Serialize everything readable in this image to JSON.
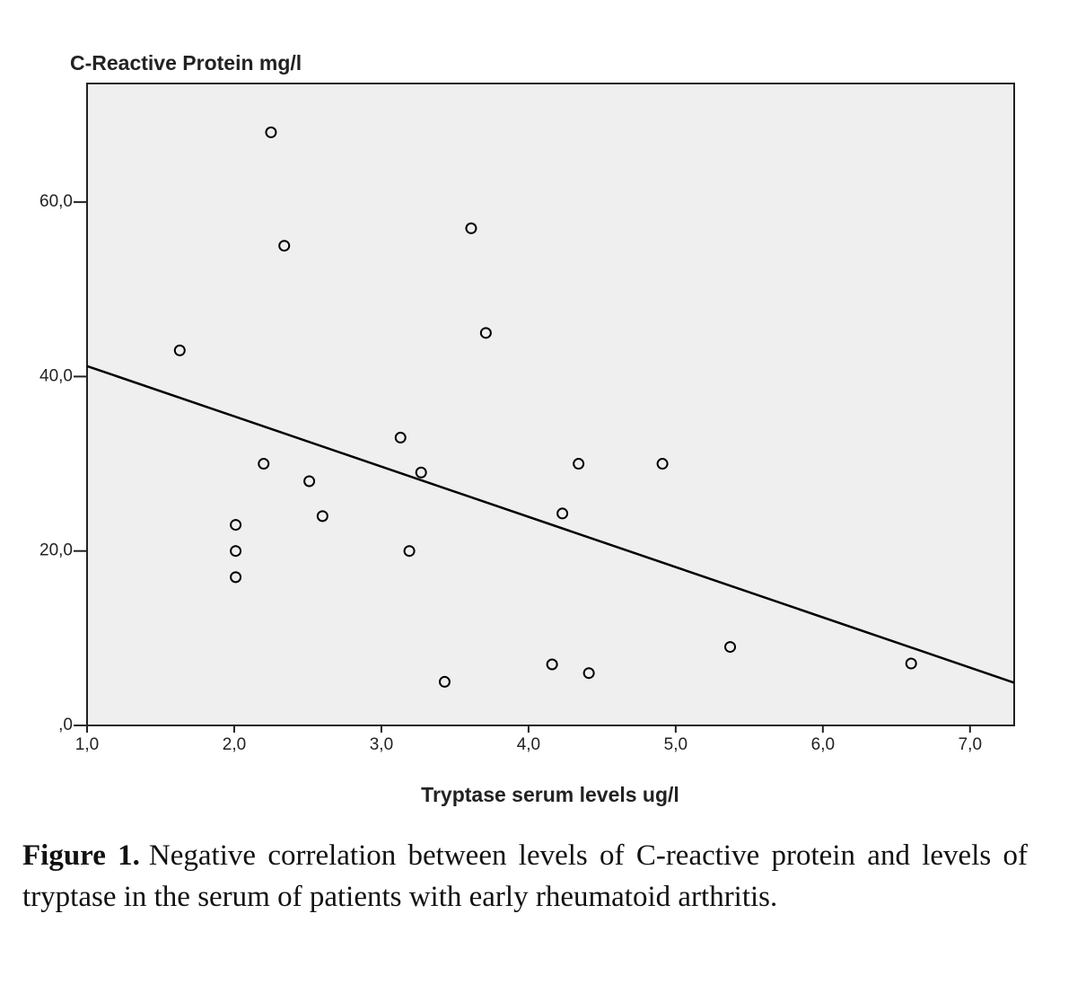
{
  "chart_data": {
    "type": "scatter",
    "y_label": "C-Reactive Protein mg/l",
    "x_label": "Tryptase serum levels ug/l",
    "x": [
      2.25,
      2.34,
      3.61,
      3.71,
      1.63,
      3.13,
      2.2,
      3.27,
      4.34,
      4.91,
      2.51,
      4.23,
      2.6,
      2.01,
      2.01,
      3.19,
      2.01,
      5.37,
      4.16,
      6.6,
      4.41,
      3.43
    ],
    "y": [
      68,
      55,
      57,
      45,
      43,
      33,
      30,
      29,
      30,
      30,
      28,
      24.3,
      24,
      23,
      20,
      20,
      17,
      9,
      7,
      7.1,
      6,
      5
    ],
    "color": "#000000",
    "fit": {
      "x": [
        1.0,
        7.3
      ],
      "y": [
        41.2,
        4.9
      ]
    },
    "xlim": [
      1.0,
      7.3
    ],
    "ylim": [
      0,
      73.6
    ],
    "xticks": [
      {
        "value": 1,
        "label": "1,0"
      },
      {
        "value": 2,
        "label": "2,0"
      },
      {
        "value": 3,
        "label": "3,0"
      },
      {
        "value": 4,
        "label": "4,0"
      },
      {
        "value": 5,
        "label": "5,0"
      },
      {
        "value": 6,
        "label": "6,0"
      },
      {
        "value": 7,
        "label": "7,0"
      }
    ],
    "yticks": [
      {
        "value": 0,
        "label": ",0"
      },
      {
        "value": 20,
        "label": "20,0"
      },
      {
        "value": 40,
        "label": "40,0"
      },
      {
        "value": 60,
        "label": "60,0"
      }
    ],
    "grid": false,
    "caption": {
      "label": "Figure 1.",
      "text": "Negative correlation between levels of C-reactive protein and levels of tryptase in the serum of patients with early rheumatoid arthritis."
    }
  }
}
